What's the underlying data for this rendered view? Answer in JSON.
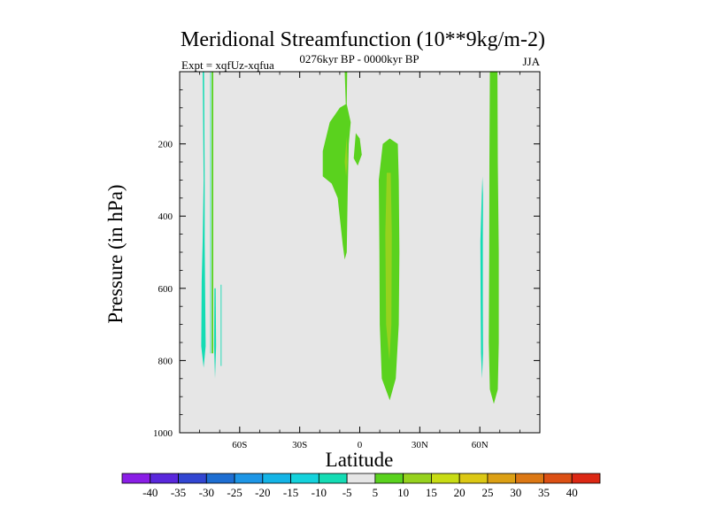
{
  "chart_data": {
    "type": "heatmap",
    "title": "Meridional Streamfunction (10**9kg/m-2)",
    "subtitle": "0276kyr BP - 0000kyr BP",
    "left_label": "Expt = xqfUz-xqfua",
    "right_label": "JJA",
    "xlabel": "Latitude",
    "ylabel": "Pressure (in hPa)",
    "xlim": [
      -90,
      90
    ],
    "ylim": [
      1000,
      0
    ],
    "x_ticks": [
      {
        "value": -60,
        "label": "60S"
      },
      {
        "value": -30,
        "label": "30S"
      },
      {
        "value": 0,
        "label": "0"
      },
      {
        "value": 30,
        "label": "30N"
      },
      {
        "value": 60,
        "label": "60N"
      }
    ],
    "y_ticks": [
      {
        "value": 200,
        "label": "200"
      },
      {
        "value": 400,
        "label": "400"
      },
      {
        "value": 600,
        "label": "600"
      },
      {
        "value": 800,
        "label": "800"
      },
      {
        "value": 1000,
        "label": "1000"
      }
    ],
    "background_color": "#e6e6e6",
    "colorbar": {
      "levels": [
        -40,
        -35,
        -30,
        -25,
        -20,
        -15,
        -10,
        -5,
        5,
        10,
        15,
        20,
        25,
        30,
        35,
        40
      ],
      "colors": [
        "#8a1ee6",
        "#5a28dc",
        "#3246d2",
        "#1e6ed2",
        "#1e96e6",
        "#14b4e6",
        "#14d2dc",
        "#14dcb4",
        "#e6e6e6",
        "#5ad21e",
        "#96d21e",
        "#c8dc14",
        "#dcc814",
        "#dca014",
        "#dc7814",
        "#dc5014",
        "#dc2814"
      ]
    },
    "regions": [
      {
        "name": "neg-a",
        "value": -7,
        "color": "#14dcb4",
        "points": [
          [
            -78.5,
            0
          ],
          [
            -78,
            300
          ],
          [
            -78.5,
            470
          ],
          [
            -79,
            580
          ],
          [
            -79.2,
            760
          ],
          [
            -78,
            820
          ],
          [
            -77,
            760
          ],
          [
            -77.3,
            580
          ],
          [
            -77.5,
            470
          ],
          [
            -77.5,
            300
          ],
          [
            -77.8,
            0
          ]
        ]
      },
      {
        "name": "neg-b",
        "value": -7,
        "color": "#14dcb4",
        "points": [
          [
            -74.7,
            0
          ],
          [
            -74.7,
            780
          ],
          [
            -74.4,
            780
          ],
          [
            -74.4,
            0
          ]
        ]
      },
      {
        "name": "neg-c",
        "value": -7,
        "color": "#14dcb4",
        "points": [
          [
            -72.6,
            600
          ],
          [
            -72.8,
            760
          ],
          [
            -72.3,
            850
          ],
          [
            -71.8,
            760
          ],
          [
            -72,
            600
          ]
        ]
      },
      {
        "name": "neg-d",
        "value": -7,
        "color": "#14dcb4",
        "points": [
          [
            -69.5,
            590
          ],
          [
            -69.5,
            815
          ],
          [
            -69.1,
            815
          ],
          [
            -69.1,
            590
          ]
        ]
      },
      {
        "name": "neg-e",
        "value": -7,
        "color": "#14dcb4",
        "points": [
          [
            61,
            340
          ],
          [
            60.3,
            470
          ],
          [
            60.4,
            640
          ],
          [
            60.6,
            780
          ],
          [
            61.1,
            850
          ],
          [
            61.6,
            780
          ],
          [
            61.5,
            640
          ],
          [
            61.5,
            470
          ],
          [
            61.6,
            340
          ],
          [
            61.3,
            290
          ]
        ]
      },
      {
        "name": "pos-a",
        "value": 7,
        "color": "#5ad21e",
        "points": [
          [
            -74,
            0
          ],
          [
            -74,
            780
          ],
          [
            -73.2,
            780
          ],
          [
            -73.2,
            0
          ]
        ]
      },
      {
        "name": "pos-b",
        "value": 7,
        "color": "#5ad21e",
        "points": [
          [
            -7.5,
            0
          ],
          [
            -7,
            90
          ],
          [
            -10,
            100
          ],
          [
            -15,
            140
          ],
          [
            -18.5,
            220
          ],
          [
            -18.5,
            290
          ],
          [
            -14,
            310
          ],
          [
            -11,
            350
          ],
          [
            -8.5,
            480
          ],
          [
            -7.5,
            520
          ],
          [
            -6.5,
            500
          ],
          [
            -6,
            330
          ],
          [
            -5.5,
            200
          ],
          [
            -4.5,
            140
          ],
          [
            -6.5,
            90
          ],
          [
            -6.3,
            0
          ]
        ]
      },
      {
        "name": "pos-c",
        "value": 7,
        "color": "#5ad21e",
        "points": [
          [
            -2,
            170
          ],
          [
            -3,
            240
          ],
          [
            -1,
            260
          ],
          [
            1,
            230
          ],
          [
            0,
            185
          ]
        ]
      },
      {
        "name": "pos-d",
        "value": 7,
        "color": "#5ad21e",
        "points": [
          [
            11.5,
            200
          ],
          [
            9.5,
            300
          ],
          [
            9.8,
            500
          ],
          [
            10,
            700
          ],
          [
            11,
            850
          ],
          [
            15,
            910
          ],
          [
            18,
            850
          ],
          [
            19.5,
            700
          ],
          [
            19.8,
            500
          ],
          [
            19.5,
            300
          ],
          [
            19,
            200
          ],
          [
            15,
            185
          ]
        ]
      },
      {
        "name": "pos-e",
        "value": 7,
        "color": "#5ad21e",
        "points": [
          [
            65,
            0
          ],
          [
            64.8,
            250
          ],
          [
            64.7,
            500
          ],
          [
            64.5,
            750
          ],
          [
            65,
            880
          ],
          [
            67,
            920
          ],
          [
            69,
            880
          ],
          [
            69.5,
            750
          ],
          [
            69.5,
            500
          ],
          [
            69,
            250
          ],
          [
            68.8,
            0
          ]
        ]
      },
      {
        "name": "pos-f",
        "value": 12,
        "color": "#96d21e",
        "points": [
          [
            -6.5,
            180
          ],
          [
            -7.5,
            250
          ],
          [
            -6.8,
            290
          ],
          [
            -6.2,
            250
          ]
        ]
      },
      {
        "name": "pos-g",
        "value": 12,
        "color": "#96d21e",
        "points": [
          [
            13.5,
            280
          ],
          [
            12.8,
            450
          ],
          [
            13.2,
            700
          ],
          [
            14.8,
            800
          ],
          [
            15.8,
            700
          ],
          [
            16,
            450
          ],
          [
            15.5,
            280
          ]
        ]
      }
    ]
  }
}
